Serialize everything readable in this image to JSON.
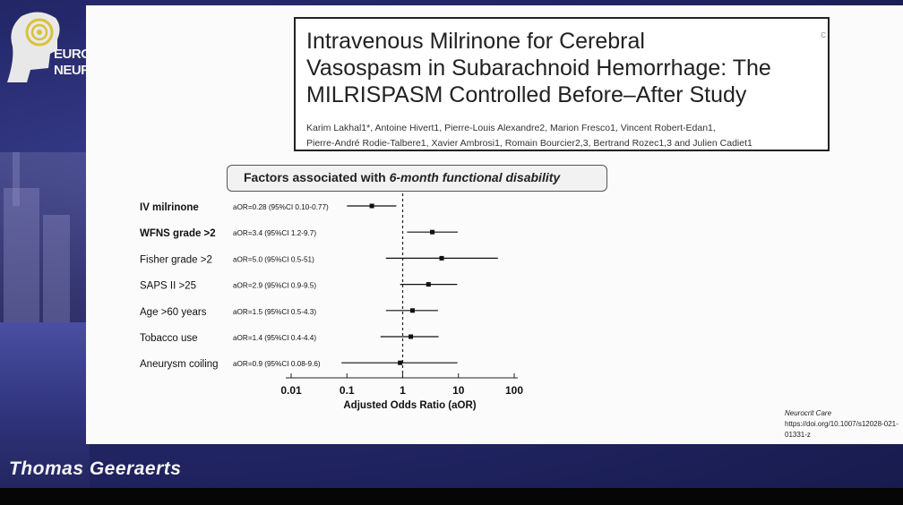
{
  "logo": {
    "line1": "EURO",
    "line2": "NEURO"
  },
  "paper": {
    "title_lines": [
      "Intravenous Milrinone for Cerebral",
      "Vasospasm in Subarachnoid Hemorrhage: The",
      "MILRISPASM Controlled Before–After Study"
    ],
    "authors_line1": "Karim Lakhal1*, Antoine Hivert1, Pierre-Louis Alexandre2, Marion Fresco1, Vincent Robert-Edan1,",
    "authors_line2": "Pierre-André Rodie-Talbere1, Xavier Ambrosi1, Romain Bourcier2,3, Bertrand Rozec1,3 and Julien Cadiet1",
    "corner_mark": "C"
  },
  "factors_title_plain": "Factors associated with ",
  "factors_title_italic": "6-month functional disability",
  "reference": {
    "journal": "Neurocrit Care",
    "doi": "https://doi.org/10.1007/s12028-021-01331-z"
  },
  "presenter": "Thomas  Geeraerts",
  "chart_data": {
    "type": "forest",
    "xscale": "log",
    "xlim": [
      0.01,
      100
    ],
    "xticks": [
      "0.01",
      "0.1",
      "1",
      "10",
      "100"
    ],
    "xlabel": "Adjusted Odds Ratio (aOR)",
    "reference_line": 1,
    "rows": [
      {
        "label": "IV milrinone",
        "bold": true,
        "text": "aOR=0.28 (95%CI 0.10-0.77)",
        "est": 0.28,
        "lo": 0.1,
        "hi": 0.77
      },
      {
        "label": "WFNS grade >2",
        "bold": true,
        "text": "aOR=3.4 (95%CI 1.2-9.7)",
        "est": 3.4,
        "lo": 1.2,
        "hi": 9.7
      },
      {
        "label": "Fisher grade >2",
        "bold": false,
        "text": "aOR=5.0 (95%CI 0.5-51)",
        "est": 5.0,
        "lo": 0.5,
        "hi": 51
      },
      {
        "label": "SAPS II >25",
        "bold": false,
        "text": "aOR=2.9 (95%CI 0.9-9.5)",
        "est": 2.9,
        "lo": 0.9,
        "hi": 9.5
      },
      {
        "label": "Age >60 years",
        "bold": false,
        "text": "aOR=1.5 (95%CI 0.5-4.3)",
        "est": 1.5,
        "lo": 0.5,
        "hi": 4.3
      },
      {
        "label": "Tobacco use",
        "bold": false,
        "text": "aOR=1.4 (95%CI 0.4-4.4)",
        "est": 1.4,
        "lo": 0.4,
        "hi": 4.4
      },
      {
        "label": "Aneurysm coiling",
        "bold": false,
        "text": "aOR=0.9 (95%CI 0.08-9.6)",
        "est": 0.9,
        "lo": 0.08,
        "hi": 9.6
      }
    ]
  }
}
